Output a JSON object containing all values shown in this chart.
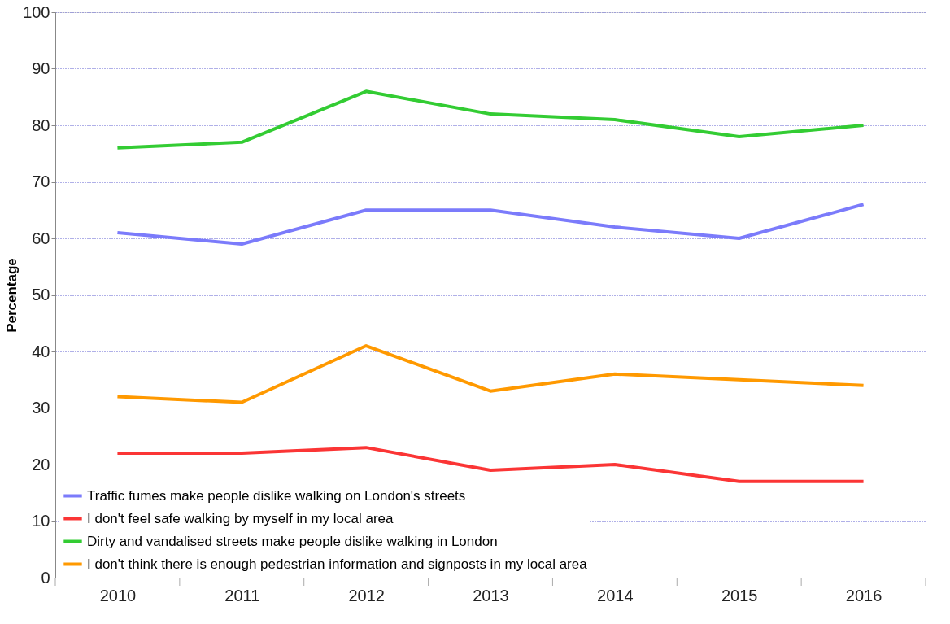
{
  "chart_data": {
    "type": "line",
    "ylabel": "Percentage",
    "categories": [
      "2010",
      "2011",
      "2012",
      "2013",
      "2014",
      "2015",
      "2016"
    ],
    "series": [
      {
        "name": "Traffic fumes make people dislike walking on London's streets",
        "color": "#7b7bfb",
        "values": [
          61,
          59,
          65,
          65,
          62,
          60,
          66
        ]
      },
      {
        "name": "I don't feel safe walking by myself in my local area",
        "color": "#fb3535",
        "values": [
          22,
          22,
          23,
          19,
          20,
          17,
          17
        ]
      },
      {
        "name": "Dirty and vandalised streets make people dislike walking in London",
        "color": "#33cc33",
        "values": [
          76,
          77,
          86,
          82,
          81,
          78,
          80
        ]
      },
      {
        "name": "I don't think there is enough pedestrian information and signposts in my local area",
        "color": "#ff9900",
        "values": [
          32,
          31,
          41,
          33,
          36,
          35,
          34
        ]
      }
    ],
    "ylim": [
      0,
      100
    ],
    "yticks": [
      0,
      10,
      20,
      30,
      40,
      50,
      60,
      70,
      80,
      90,
      100
    ],
    "grid": "y",
    "legend": "bottom left",
    "marker": "none",
    "line_style": "solid"
  }
}
